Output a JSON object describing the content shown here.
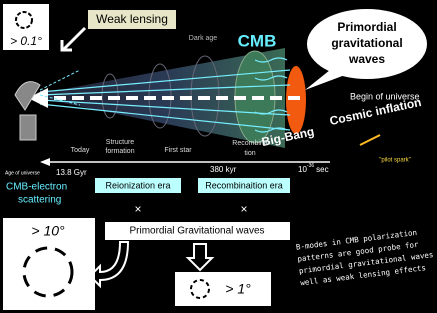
{
  "top_left_box": {
    "angle": "> 0.1°"
  },
  "weak_lensing": "Weak lensing",
  "dark_age": "Dark age",
  "cmb": "CMB",
  "bubble": {
    "lines": [
      "Primordial",
      "gravitational",
      "waves"
    ]
  },
  "begin_of_universe": "Begin of universe",
  "cosmic_inflation": "Cosmic inflation",
  "big_bang": "Big-Bang",
  "pilot_spark": "\"pilot spark\"",
  "epochs": {
    "today": "Today",
    "structure_formation": [
      "Structure",
      "formation"
    ],
    "first_star": "First star",
    "recombination": [
      "Recombina",
      "tion"
    ]
  },
  "timeline": {
    "label": "Age of universe",
    "today": "13.8 Gyr",
    "recombination": "380 kyr",
    "inflation_base": "10",
    "inflation_exp": "-36",
    "inflation_unit": "sec"
  },
  "cmb_electron": [
    "CMB-electron",
    "scattering"
  ],
  "eras": {
    "reionization": "Reionization era",
    "recombination": "Recombinaition era",
    "times_left": "×",
    "times_right": "×"
  },
  "pgw_box": "Primordial Gravitational waves",
  "large_box": {
    "angle": "> 10°"
  },
  "small_box": {
    "angle": "> 1°"
  },
  "note": [
    "B-modes in CMB polarization",
    "patterns are good probe for",
    "primordial gravitational waves as",
    "well as weak lensing effects"
  ]
}
